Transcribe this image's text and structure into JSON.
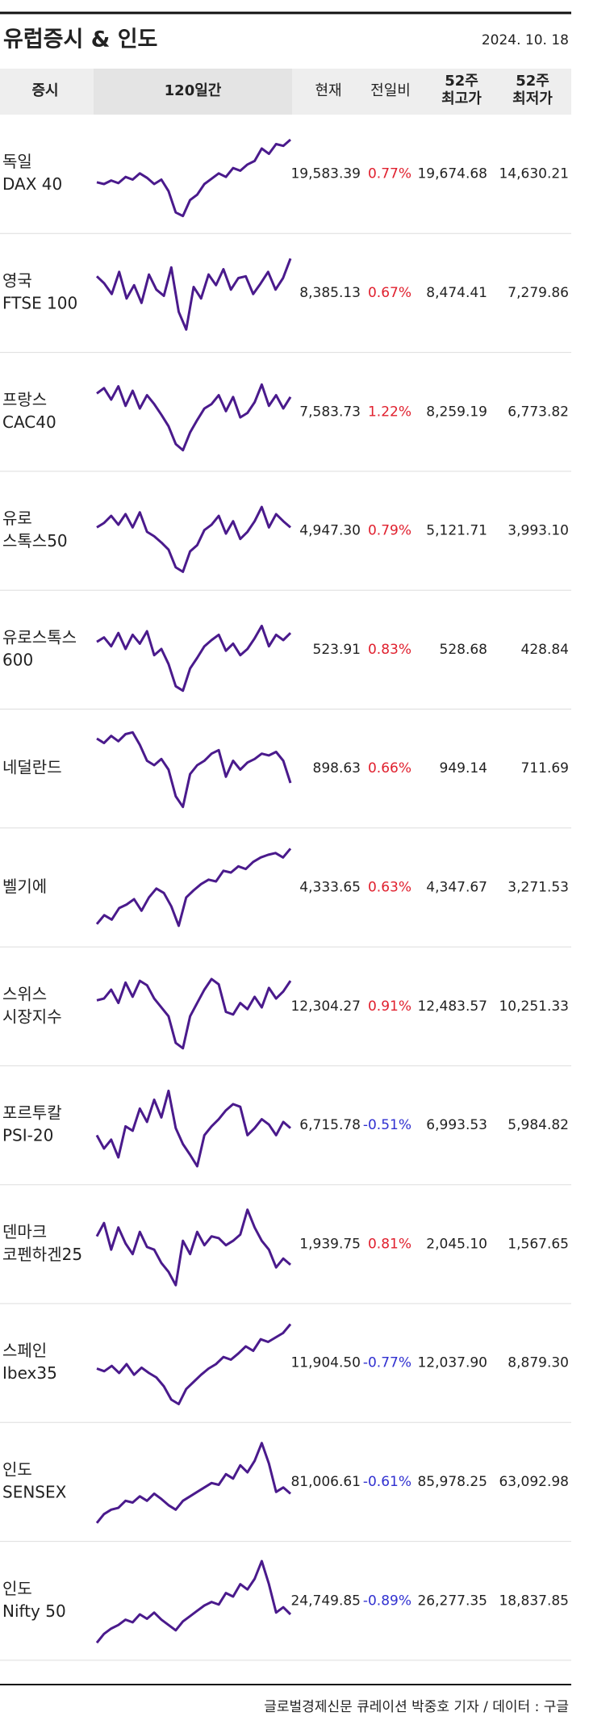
{
  "header": {
    "title": "유럽증시 & 인도",
    "date": "2024. 10. 18"
  },
  "table": {
    "columns": [
      [
        "증시"
      ],
      [
        "120일간"
      ],
      [
        "현재"
      ],
      [
        "전일비"
      ],
      [
        "52주",
        "최고가"
      ],
      [
        "52주",
        "최저가"
      ]
    ],
    "rows": [
      {
        "name": [
          "독일",
          "DAX 40"
        ],
        "trend": [
          42,
          40,
          44,
          41,
          48,
          45,
          52,
          47,
          40,
          45,
          32,
          8,
          4,
          22,
          28,
          40,
          46,
          52,
          48,
          58,
          55,
          62,
          66,
          80,
          74,
          85,
          83,
          90
        ],
        "current": "19,583.39",
        "change": "0.77%",
        "high": "19,674.68",
        "low": "14,630.21"
      },
      {
        "name": [
          "영국",
          "FTSE 100"
        ],
        "trend": [
          70,
          62,
          50,
          75,
          45,
          60,
          40,
          72,
          55,
          48,
          80,
          30,
          10,
          58,
          45,
          72,
          60,
          78,
          55,
          68,
          70,
          50,
          62,
          75,
          55,
          68,
          90
        ],
        "current": "8,385.13",
        "change": "0.67%",
        "high": "8,474.41",
        "low": "7,279.86"
      },
      {
        "name": [
          "프랑스",
          "CAC40"
        ],
        "trend": [
          72,
          78,
          65,
          80,
          58,
          75,
          55,
          70,
          60,
          48,
          35,
          15,
          8,
          28,
          42,
          55,
          60,
          70,
          52,
          68,
          45,
          50,
          62,
          82,
          58,
          70,
          55,
          68
        ],
        "current": "7,583.73",
        "change": "1.22%",
        "high": "8,259.19",
        "low": "6,773.82"
      },
      {
        "name": [
          "유로",
          "스톡스50"
        ],
        "trend": [
          55,
          60,
          68,
          58,
          70,
          55,
          72,
          50,
          45,
          38,
          30,
          10,
          5,
          28,
          35,
          52,
          58,
          68,
          48,
          62,
          42,
          50,
          62,
          78,
          55,
          70,
          62,
          55
        ],
        "current": "4,947.30",
        "change": "0.79%",
        "high": "5,121.71",
        "low": "3,993.10"
      },
      {
        "name": [
          "유로스톡스",
          "600"
        ],
        "trend": [
          60,
          65,
          55,
          70,
          52,
          68,
          58,
          72,
          45,
          52,
          35,
          10,
          5,
          30,
          42,
          55,
          62,
          68,
          50,
          58,
          45,
          52,
          64,
          78,
          55,
          68,
          62,
          70
        ],
        "current": "523.91",
        "change": "0.83%",
        "high": "528.68",
        "low": "428.84"
      },
      {
        "name": [
          "네덜란드"
        ],
        "trend": [
          85,
          80,
          88,
          82,
          90,
          92,
          78,
          60,
          55,
          62,
          50,
          20,
          8,
          45,
          55,
          60,
          68,
          72,
          42,
          60,
          50,
          58,
          62,
          68,
          66,
          70,
          60,
          35
        ],
        "current": "898.63",
        "change": "0.66%",
        "high": "949.14",
        "low": "711.69"
      },
      {
        "name": [
          "벨기에"
        ],
        "trend": [
          10,
          20,
          15,
          28,
          32,
          38,
          25,
          40,
          50,
          45,
          30,
          8,
          40,
          48,
          55,
          60,
          58,
          70,
          68,
          75,
          72,
          80,
          85,
          88,
          90,
          85,
          95
        ],
        "current": "4,333.65",
        "change": "0.63%",
        "high": "4,347.67",
        "low": "3,271.53"
      },
      {
        "name": [
          "스위스",
          "시장지수"
        ],
        "trend": [
          58,
          60,
          70,
          55,
          78,
          62,
          80,
          75,
          60,
          50,
          40,
          10,
          4,
          40,
          55,
          70,
          82,
          76,
          45,
          42,
          55,
          48,
          62,
          50,
          72,
          60,
          68,
          80
        ],
        "current": "12,304.27",
        "change": "0.91%",
        "high": "12,483.57",
        "low": "10,251.33"
      },
      {
        "name": [
          "포르투칼",
          "PSI-20"
        ],
        "trend": [
          40,
          25,
          35,
          15,
          50,
          45,
          70,
          55,
          80,
          60,
          90,
          48,
          30,
          18,
          5,
          40,
          50,
          58,
          68,
          75,
          72,
          40,
          48,
          58,
          52,
          40,
          55,
          48
        ],
        "current": "6,715.78",
        "change": "-0.51%",
        "high": "6,993.53",
        "low": "5,984.82"
      },
      {
        "name": [
          "덴마크",
          "코펜하겐25"
        ],
        "trend": [
          60,
          75,
          45,
          70,
          52,
          40,
          65,
          48,
          45,
          30,
          20,
          5,
          55,
          40,
          65,
          50,
          60,
          58,
          50,
          55,
          62,
          90,
          70,
          55,
          45,
          25,
          35,
          28
        ],
        "current": "1,939.75",
        "change": "0.81%",
        "high": "2,045.10",
        "low": "1,567.65"
      },
      {
        "name": [
          "스페인",
          "Ibex35"
        ],
        "trend": [
          45,
          42,
          48,
          40,
          50,
          38,
          46,
          40,
          35,
          25,
          10,
          5,
          22,
          30,
          38,
          45,
          50,
          58,
          55,
          62,
          70,
          65,
          78,
          75,
          80,
          85,
          95
        ],
        "current": "11,904.50",
        "change": "-0.77%",
        "high": "12,037.90",
        "low": "8,879.30"
      },
      {
        "name": [
          "인도",
          "SENSEX"
        ],
        "trend": [
          5,
          15,
          20,
          22,
          30,
          28,
          35,
          30,
          38,
          32,
          25,
          20,
          30,
          35,
          40,
          45,
          50,
          48,
          60,
          55,
          70,
          62,
          75,
          95,
          72,
          40,
          45,
          38
        ],
        "current": "81,006.61",
        "change": "-0.61%",
        "high": "85,978.25",
        "low": "63,092.98"
      },
      {
        "name": [
          "인도",
          "Nifty 50"
        ],
        "trend": [
          4,
          14,
          20,
          24,
          30,
          27,
          36,
          31,
          38,
          30,
          24,
          18,
          28,
          34,
          40,
          46,
          50,
          47,
          60,
          56,
          70,
          64,
          76,
          96,
          70,
          38,
          44,
          36
        ],
        "current": "24,749.85",
        "change": "-0.89%",
        "high": "26,277.35",
        "low": "18,837.85"
      }
    ]
  },
  "footer": "글로벌경제신문 큐레이션 박중호 기자 / 데이터 : 구글",
  "line_color": "#4a1a8c",
  "up_color": "#e0202e",
  "down_color": "#3030d0"
}
